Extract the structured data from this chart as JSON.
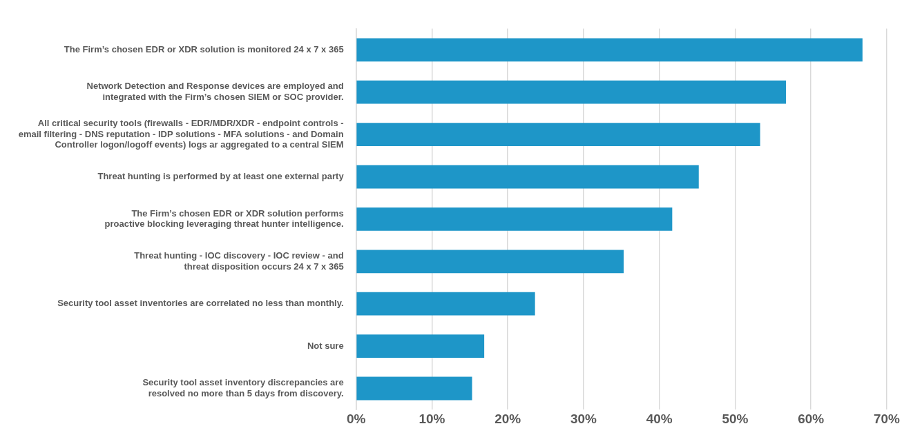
{
  "chart_data": {
    "type": "bar",
    "orientation": "horizontal",
    "categories": [
      "The Firm’s chosen EDR or XDR solution is monitored 24 x 7 x 365",
      "Network Detection and Response devices are employed and\nintegrated with the Firm’s chosen SIEM or SOC provider.",
      "All critical security tools (firewalls - EDR/MDR/XDR - endpoint controls -\nemail filtering - DNS reputation - IDP solutions - MFA solutions - and Domain\nController logon/logoff events) logs ar aggregated to a central SIEM",
      "Threat hunting is performed by at least one external party",
      "The Firm’s chosen EDR or XDR solution performs\nproactive blocking leveraging threat hunter intelligence.",
      "Threat hunting - IOC discovery - IOC review - and\nthreat disposition occurs 24 x 7 x 365",
      "Security tool asset inventories are correlated no less than monthly.",
      "Not sure",
      "Security tool asset inventory discrepancies are\nresolved no more than 5 days from discovery."
    ],
    "values": [
      66.8,
      56.7,
      53.3,
      45.2,
      41.7,
      35.3,
      23.6,
      16.9,
      15.3
    ],
    "color": "#1e96c8",
    "xlim": [
      0,
      70
    ],
    "xticks": [
      {
        "value": 0,
        "label": "0%"
      },
      {
        "value": 10,
        "label": "10%"
      },
      {
        "value": 20,
        "label": "20%"
      },
      {
        "value": 30,
        "label": "30%"
      },
      {
        "value": 40,
        "label": "40%"
      },
      {
        "value": 50,
        "label": "50%"
      },
      {
        "value": 60,
        "label": "60%"
      },
      {
        "value": 70,
        "label": "70%"
      }
    ],
    "grid": "x",
    "legend": false
  }
}
